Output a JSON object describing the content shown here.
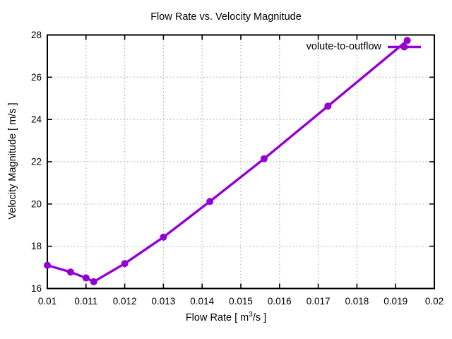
{
  "figure": {
    "background": "#ffffff"
  },
  "chart_data": {
    "type": "line",
    "title": "Flow Rate vs. Velocity Magnitude",
    "xlabel": "Flow Rate [ m^3/s ]",
    "xlabel_parts": {
      "pre": "Flow Rate [ m",
      "sup": "3",
      "post": "/s ]"
    },
    "ylabel": "Velocity Magnitude [ m/s ]",
    "xlim": [
      0.01,
      0.02
    ],
    "ylim": [
      16,
      28
    ],
    "x_ticks": [
      0.01,
      0.011,
      0.012,
      0.013,
      0.014,
      0.015,
      0.016,
      0.017,
      0.018,
      0.019,
      0.02
    ],
    "x_tick_labels": [
      "0.01",
      "0.011",
      "0.012",
      "0.013",
      "0.014",
      "0.015",
      "0.016",
      "0.017",
      "0.018",
      "0.019",
      "0.02"
    ],
    "y_ticks": [
      16,
      18,
      20,
      22,
      24,
      26,
      28
    ],
    "y_tick_labels": [
      "16",
      "18",
      "20",
      "22",
      "24",
      "26",
      "28"
    ],
    "grid": true,
    "legend": {
      "position": "top-right",
      "label": "volute-to-outflow"
    },
    "series": [
      {
        "name": "volute-to-outflow",
        "color": "#9400d3",
        "marker": "circle",
        "points": [
          [
            0.01,
            17.1
          ],
          [
            0.0106,
            16.78
          ],
          [
            0.011,
            16.5
          ],
          [
            0.0112,
            16.32
          ],
          [
            0.012,
            17.18
          ],
          [
            0.013,
            18.43
          ],
          [
            0.0142,
            20.12
          ],
          [
            0.0156,
            22.14
          ],
          [
            0.01725,
            24.63
          ],
          [
            0.0193,
            27.74
          ]
        ]
      }
    ]
  },
  "style": {
    "series_color": "#9400d3",
    "grid_color": "#b9b9b9",
    "axis_color": "#000000",
    "text_color": "#000000"
  }
}
